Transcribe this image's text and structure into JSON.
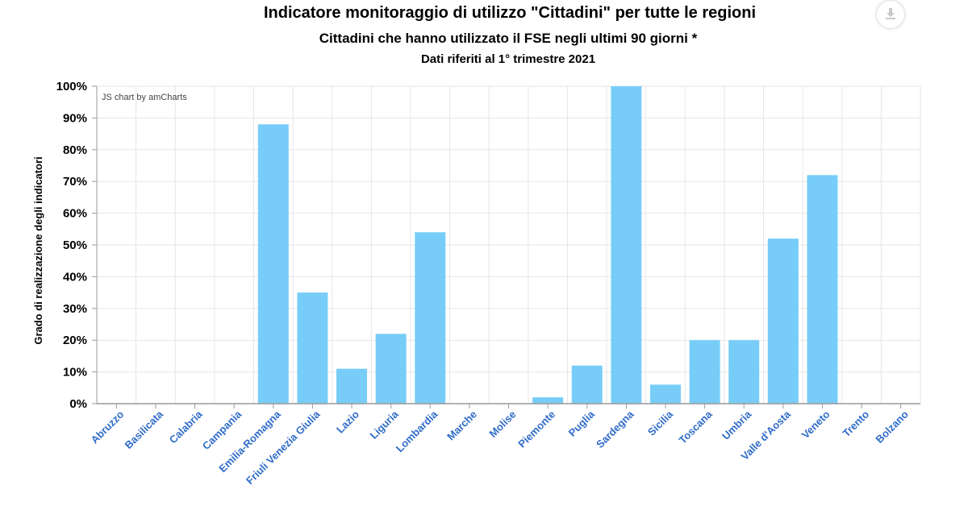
{
  "header": {
    "title": "Indicatore monitoraggio di utilizzo \"Cittadini\" per tutte le regioni",
    "subtitle": "Cittadini che hanno utilizzato il FSE negli ultimi 90 giorni *",
    "subtitle2": "Dati riferiti al 1° trimestre 2021",
    "download_icon": "download-icon"
  },
  "credit": "JS chart by amCharts",
  "colors": {
    "bar": "#77cdf8",
    "grid": "#e6e6e6",
    "axis": "#999999",
    "tick_label": "#2f6cc8"
  },
  "chart_data": {
    "type": "bar",
    "title": "Indicatore monitoraggio di utilizzo \"Cittadini\" per tutte le regioni",
    "xlabel": "",
    "ylabel": "Grado di realizzazione degli indicatori",
    "ylim": [
      0,
      100
    ],
    "yticks": [
      "0%",
      "10%",
      "20%",
      "30%",
      "40%",
      "50%",
      "60%",
      "70%",
      "80%",
      "90%",
      "100%"
    ],
    "grid": true,
    "categories": [
      "Abruzzo",
      "Basilicata",
      "Calabria",
      "Campania",
      "Emilia-Romagna",
      "Friuli Venezia Giulia",
      "Lazio",
      "Liguria",
      "Lombardia",
      "Marche",
      "Molise",
      "Piemonte",
      "Puglia",
      "Sardegna",
      "Sicilia",
      "Toscana",
      "Umbria",
      "Valle d'Aosta",
      "Veneto",
      "Trento",
      "Bolzano"
    ],
    "values": [
      0,
      0,
      0,
      0,
      88,
      35,
      11,
      22,
      54,
      0,
      0,
      2,
      12,
      100,
      6,
      20,
      20,
      52,
      72,
      0,
      0
    ]
  }
}
